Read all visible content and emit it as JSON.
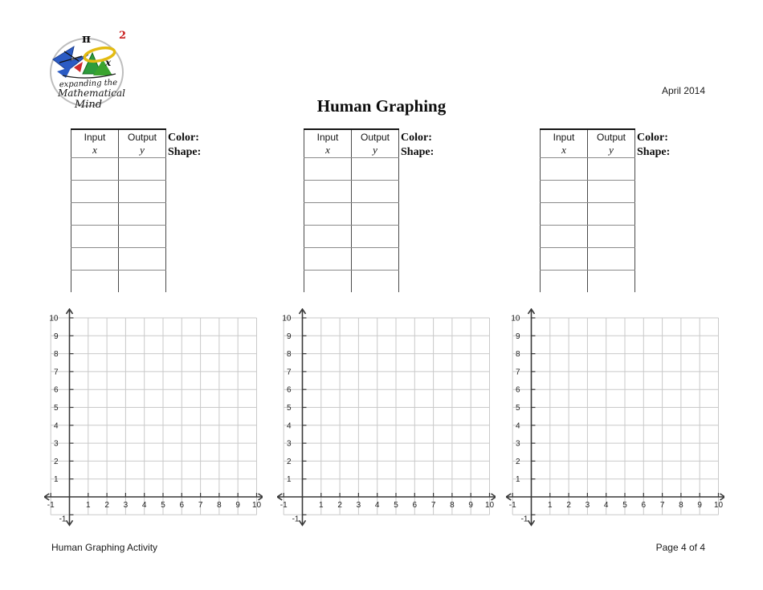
{
  "header": {
    "date": "April 2014",
    "title": "Human Graphing",
    "logo": {
      "pi": "π",
      "exponent": "2",
      "x": "x",
      "line1": "expanding the",
      "line2": "Mathematical",
      "line3": "Mind"
    }
  },
  "tables": [
    {
      "col1_title": "Input",
      "col1_var": "x",
      "col2_title": "Output",
      "col2_var": "y",
      "color_label": "Color:",
      "shape_label": "Shape:",
      "rows": 6
    },
    {
      "col1_title": "Input",
      "col1_var": "x",
      "col2_title": "Output",
      "col2_var": "y",
      "color_label": "Color:",
      "shape_label": "Shape:",
      "rows": 6
    },
    {
      "col1_title": "Input",
      "col1_var": "x",
      "col2_title": "Output",
      "col2_var": "y",
      "color_label": "Color:",
      "shape_label": "Shape:",
      "rows": 6
    }
  ],
  "chart_data": [
    {
      "type": "scatter",
      "points": [],
      "title": "",
      "xlabel": "",
      "ylabel": "",
      "xlim": [
        -1,
        10
      ],
      "ylim": [
        -1,
        10
      ],
      "x_tick_labels": [
        "-1",
        "1",
        "2",
        "3",
        "4",
        "5",
        "6",
        "7",
        "8",
        "9",
        "10"
      ],
      "y_tick_labels": [
        "-1",
        "1",
        "2",
        "3",
        "4",
        "5",
        "6",
        "7",
        "8",
        "9",
        "10"
      ],
      "grid": true,
      "grid_color": "#c9c9c9",
      "axis_color": "#383838",
      "label_color": "#222222"
    },
    {
      "type": "scatter",
      "points": [],
      "title": "",
      "xlabel": "",
      "ylabel": "",
      "xlim": [
        -1,
        10
      ],
      "ylim": [
        -1,
        10
      ],
      "x_tick_labels": [
        "-1",
        "1",
        "2",
        "3",
        "4",
        "5",
        "6",
        "7",
        "8",
        "9",
        "10"
      ],
      "y_tick_labels": [
        "-1",
        "1",
        "2",
        "3",
        "4",
        "5",
        "6",
        "7",
        "8",
        "9",
        "10"
      ],
      "grid": true,
      "grid_color": "#c9c9c9",
      "axis_color": "#383838",
      "label_color": "#222222"
    },
    {
      "type": "scatter",
      "points": [],
      "title": "",
      "xlabel": "",
      "ylabel": "",
      "xlim": [
        -1,
        10
      ],
      "ylim": [
        -1,
        10
      ],
      "x_tick_labels": [
        "-1",
        "1",
        "2",
        "3",
        "4",
        "5",
        "6",
        "7",
        "8",
        "9",
        "10"
      ],
      "y_tick_labels": [
        "-1",
        "1",
        "2",
        "3",
        "4",
        "5",
        "6",
        "7",
        "8",
        "9",
        "10"
      ],
      "grid": true,
      "grid_color": "#c9c9c9",
      "axis_color": "#383838",
      "label_color": "#222222"
    }
  ],
  "footer": {
    "left": "Human Graphing Activity",
    "right": "Page 4 of 4"
  }
}
